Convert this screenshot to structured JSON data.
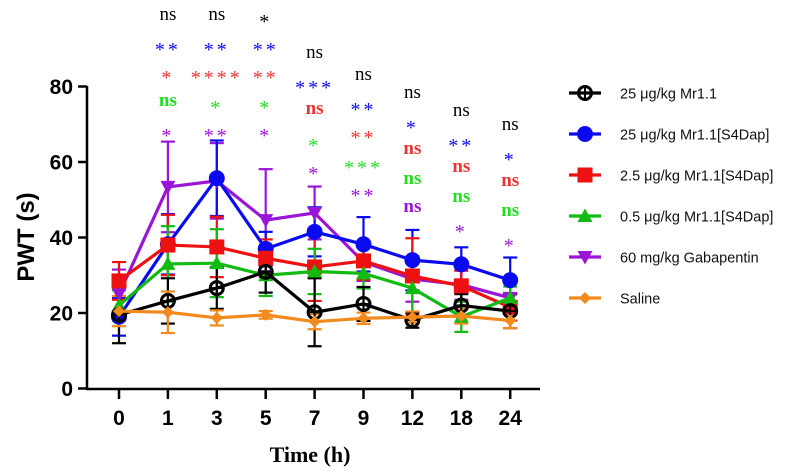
{
  "chart_data": {
    "type": "line",
    "title": "",
    "xlabel": "Time (h)",
    "ylabel": "PWT (s)",
    "categories": [
      "0",
      "1",
      "3",
      "5",
      "7",
      "9",
      "12",
      "18",
      "24"
    ],
    "ylim": [
      0,
      80
    ],
    "yticks": [
      "0",
      "20",
      "40",
      "60",
      "80"
    ],
    "grid": false,
    "legend_position": "right",
    "series": [
      {
        "name": "25 μg/kg Mr1.1",
        "color": "#000000",
        "marker": "open-circle",
        "values": [
          19.5,
          23.2,
          26.6,
          30.9,
          20.2,
          22.4,
          18.1,
          22.0,
          20.5
        ],
        "errors": [
          7.5,
          6.0,
          5.5,
          5.5,
          9.0,
          4.5,
          2.0,
          3.0,
          4.5
        ]
      },
      {
        "name": "25 μg/kg Mr1.1[S4Dap]",
        "color": "#0a0aee",
        "marker": "filled-circle",
        "values": [
          19.0,
          38.2,
          55.7,
          37.0,
          41.5,
          38.2,
          34.0,
          32.9,
          28.7
        ],
        "errors": [
          5.0,
          8.0,
          10.0,
          4.5,
          6.5,
          7.2,
          8.0,
          4.5,
          6.0
        ]
      },
      {
        "name": "2.5 μg/kg Mr1.1[S4Dap]",
        "color": "#ee1111",
        "marker": "square",
        "values": [
          28.5,
          38.0,
          37.5,
          34.5,
          32.2,
          33.8,
          29.8,
          27.2,
          21.5
        ],
        "errors": [
          5.0,
          8.0,
          8.0,
          5.0,
          9.0,
          5.0,
          10.0,
          4.0,
          3.5
        ]
      },
      {
        "name": "0.5 μg/kg Mr1.1[S4Dap]",
        "color": "#11bb11",
        "marker": "triangle-up",
        "values": [
          22.0,
          33.0,
          33.2,
          30.0,
          31.0,
          30.5,
          26.6,
          19.0,
          24.0
        ],
        "errors": [
          4.0,
          10.0,
          9.0,
          5.5,
          6.0,
          4.0,
          8.0,
          4.0,
          3.0
        ]
      },
      {
        "name": "60 mg/kg Gabapentin",
        "color": "#9a16d6",
        "marker": "triangle-down",
        "values": [
          25.0,
          53.4,
          55.0,
          44.6,
          46.5,
          33.5,
          29.0,
          27.5,
          24.0
        ],
        "errors": [
          6.5,
          12.0,
          10.0,
          13.5,
          7.0,
          5.0,
          6.0,
          4.0,
          4.0
        ]
      },
      {
        "name": "Saline",
        "color": "#f28a1e",
        "marker": "diamond",
        "values": [
          20.5,
          20.2,
          18.7,
          19.5,
          17.7,
          18.6,
          18.9,
          19.2,
          18.0
        ],
        "errors": [
          4.0,
          5.5,
          2.0,
          1.0,
          2.0,
          1.5,
          1.5,
          2.0,
          2.0
        ]
      }
    ],
    "annotations": [
      {
        "x": "1",
        "items": [
          {
            "text": "ns",
            "color": "#000000",
            "style": "ns"
          },
          {
            "text": "**",
            "color": "#0a0aee",
            "style": "star"
          },
          {
            "text": "*",
            "color": "#ee3333",
            "style": "star"
          },
          {
            "text": "ns",
            "color": "#22dd22",
            "style": "ns-bold"
          },
          {
            "text": "*",
            "color": "#9a16d6",
            "style": "star"
          }
        ]
      },
      {
        "x": "3",
        "items": [
          {
            "text": "ns",
            "color": "#000000",
            "style": "ns"
          },
          {
            "text": "**",
            "color": "#0a0aee",
            "style": "star"
          },
          {
            "text": "****",
            "color": "#ee3333",
            "style": "star"
          },
          {
            "text": "*",
            "color": "#22dd22",
            "style": "star"
          },
          {
            "text": "**",
            "color": "#9a16d6",
            "style": "star"
          }
        ]
      },
      {
        "x": "5",
        "items": [
          {
            "text": "*",
            "color": "#000000",
            "style": "star"
          },
          {
            "text": "**",
            "color": "#0a0aee",
            "style": "star"
          },
          {
            "text": "**",
            "color": "#ee3333",
            "style": "star"
          },
          {
            "text": "*",
            "color": "#22dd22",
            "style": "star"
          },
          {
            "text": "*",
            "color": "#9a16d6",
            "style": "star"
          }
        ]
      },
      {
        "x": "7",
        "items": [
          {
            "text": "ns",
            "color": "#000000",
            "style": "ns"
          },
          {
            "text": "***",
            "color": "#0a0aee",
            "style": "star"
          },
          {
            "text": "ns",
            "color": "#ee3333",
            "style": "ns-bold"
          },
          {
            "text": "*",
            "color": "#22dd22",
            "style": "star"
          },
          {
            "text": "*",
            "color": "#9a16d6",
            "style": "star"
          }
        ]
      },
      {
        "x": "9",
        "items": [
          {
            "text": "ns",
            "color": "#000000",
            "style": "ns"
          },
          {
            "text": "**",
            "color": "#0a0aee",
            "style": "star"
          },
          {
            "text": "**",
            "color": "#ee3333",
            "style": "star"
          },
          {
            "text": "***",
            "color": "#22dd22",
            "style": "star"
          },
          {
            "text": "**",
            "color": "#9a16d6",
            "style": "star"
          }
        ]
      },
      {
        "x": "12",
        "items": [
          {
            "text": "ns",
            "color": "#000000",
            "style": "ns"
          },
          {
            "text": "*",
            "color": "#0a0aee",
            "style": "star"
          },
          {
            "text": "ns",
            "color": "#ee3333",
            "style": "ns-bold"
          },
          {
            "text": "ns",
            "color": "#22dd22",
            "style": "ns-bold"
          },
          {
            "text": "ns",
            "color": "#9a16d6",
            "style": "ns-bold"
          }
        ]
      },
      {
        "x": "18",
        "items": [
          {
            "text": "ns",
            "color": "#000000",
            "style": "ns"
          },
          {
            "text": "**",
            "color": "#0a0aee",
            "style": "star"
          },
          {
            "text": "ns",
            "color": "#ee3333",
            "style": "ns-bold"
          },
          {
            "text": "ns",
            "color": "#22dd22",
            "style": "ns-bold"
          },
          {
            "text": "*",
            "color": "#9a16d6",
            "style": "star"
          }
        ]
      },
      {
        "x": "24",
        "items": [
          {
            "text": "ns",
            "color": "#000000",
            "style": "ns"
          },
          {
            "text": "*",
            "color": "#0a0aee",
            "style": "star"
          },
          {
            "text": "ns",
            "color": "#ee3333",
            "style": "ns-bold"
          },
          {
            "text": "ns",
            "color": "#22dd22",
            "style": "ns-bold"
          },
          {
            "text": "*",
            "color": "#9a16d6",
            "style": "star"
          }
        ]
      }
    ]
  }
}
